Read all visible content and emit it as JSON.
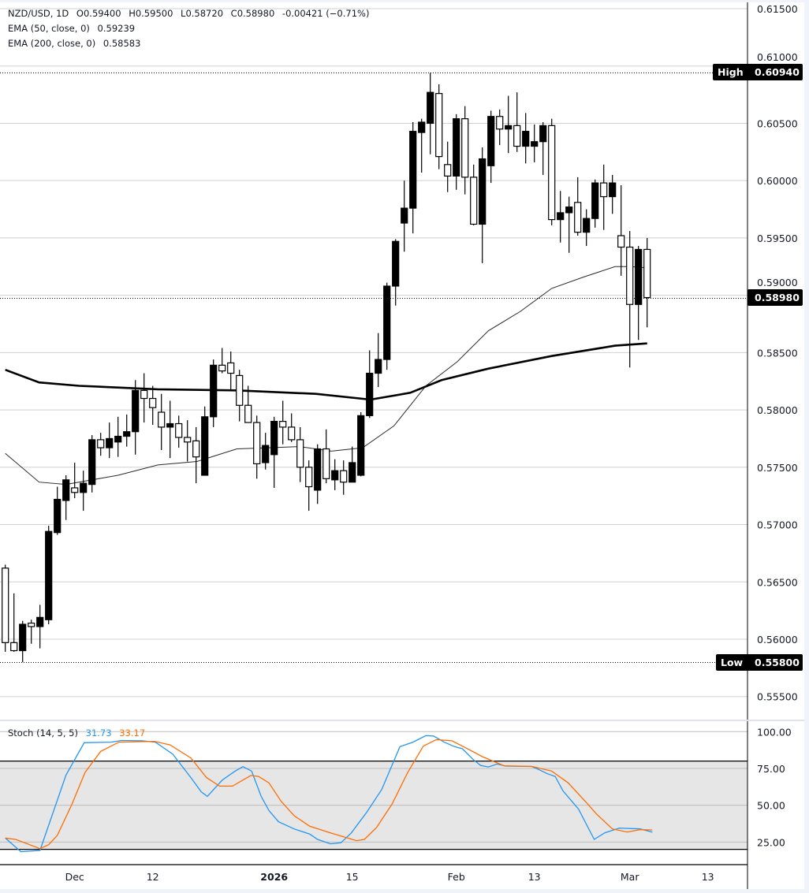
{
  "header": {
    "symbol_line": "NZD/USD, 1D",
    "open": "O0.59400",
    "high": "H0.59500",
    "low": "L0.58720",
    "close": "C0.58980",
    "change": "-0.00421 (−0.71%)",
    "ema50": "EMA (50, close, 0)",
    "ema50_value": "0.59239",
    "ema200": "EMA (200, close, 0)",
    "ema200_value": "0.58583"
  },
  "stoch_legend": {
    "label": "Stoch (14, 5, 5)",
    "k_value": "31.73",
    "d_value": "33.17"
  },
  "colors": {
    "up": "#000000",
    "down": "#ffffff",
    "ema50": "#2a2a2a",
    "ema200": "#000000",
    "stoch_k": "#2196f3",
    "stoch_d": "#ff6d00",
    "band": "#e6e6e6",
    "grid": "#d0d0d0"
  },
  "chart_data": [
    {
      "type": "candlestick",
      "title": "NZD/USD, 1D",
      "ylim": [
        0.553,
        0.616
      ],
      "y_ticks": [
        "0.61500",
        "0.61000",
        "0.60500",
        "0.60000",
        "0.59500",
        "0.59000",
        "0.58500",
        "0.58000",
        "0.57500",
        "0.57000",
        "0.56500",
        "0.56000",
        "0.55500"
      ],
      "x_ticks": [
        {
          "label": "Dec",
          "bar": 8,
          "bold": false
        },
        {
          "label": "12",
          "bar": 17,
          "bold": false
        },
        {
          "label": "2026",
          "bar": 31,
          "bold": true
        },
        {
          "label": "15",
          "bar": 40,
          "bold": false
        },
        {
          "label": "Feb",
          "bar": 52,
          "bold": false
        },
        {
          "label": "13",
          "bar": 61,
          "bold": false
        },
        {
          "label": "Mar",
          "bar": 72,
          "bold": false
        },
        {
          "label": "13",
          "bar": 81,
          "bold": false
        }
      ],
      "markers": {
        "high": {
          "label": "High",
          "value": "0.60940"
        },
        "low": {
          "label": "Low",
          "value": "0.55800"
        },
        "last": {
          "value": "0.58980"
        }
      },
      "ohlc_columns": [
        "open",
        "high",
        "low",
        "close"
      ],
      "candles": [
        [
          0.5662,
          0.5665,
          0.5589,
          0.5597
        ],
        [
          0.5597,
          0.564,
          0.5589,
          0.559
        ],
        [
          0.559,
          0.5616,
          0.558,
          0.5613
        ],
        [
          0.5614,
          0.5617,
          0.5596,
          0.5611
        ],
        [
          0.5611,
          0.563,
          0.5592,
          0.5619
        ],
        [
          0.5617,
          0.5699,
          0.5613,
          0.5694
        ],
        [
          0.5693,
          0.5733,
          0.5691,
          0.5722
        ],
        [
          0.5721,
          0.5743,
          0.5704,
          0.5739
        ],
        [
          0.5732,
          0.5754,
          0.5723,
          0.5728
        ],
        [
          0.5728,
          0.5747,
          0.5712,
          0.5736
        ],
        [
          0.5735,
          0.5778,
          0.5728,
          0.5774
        ],
        [
          0.5774,
          0.578,
          0.576,
          0.5767
        ],
        [
          0.5767,
          0.5789,
          0.5758,
          0.5775
        ],
        [
          0.5772,
          0.5794,
          0.5759,
          0.5777
        ],
        [
          0.5777,
          0.5796,
          0.5768,
          0.5781
        ],
        [
          0.5781,
          0.5826,
          0.5761,
          0.5817
        ],
        [
          0.5817,
          0.5832,
          0.5789,
          0.581
        ],
        [
          0.581,
          0.5821,
          0.5787,
          0.5802
        ],
        [
          0.5798,
          0.5814,
          0.5765,
          0.5785
        ],
        [
          0.5785,
          0.5808,
          0.5758,
          0.5788
        ],
        [
          0.5788,
          0.5795,
          0.5767,
          0.5776
        ],
        [
          0.5776,
          0.5791,
          0.5755,
          0.5772
        ],
        [
          0.5773,
          0.5785,
          0.5736,
          0.5759
        ],
        [
          0.5743,
          0.5803,
          0.5743,
          0.5794
        ],
        [
          0.5794,
          0.5844,
          0.5785,
          0.5839
        ],
        [
          0.5839,
          0.5854,
          0.5832,
          0.5834
        ],
        [
          0.5841,
          0.5851,
          0.5818,
          0.5832
        ],
        [
          0.583,
          0.5835,
          0.579,
          0.5804
        ],
        [
          0.5804,
          0.5821,
          0.5789,
          0.5789
        ],
        [
          0.5789,
          0.5795,
          0.574,
          0.5753
        ],
        [
          0.5754,
          0.578,
          0.5748,
          0.5769
        ],
        [
          0.5761,
          0.5794,
          0.5732,
          0.579
        ],
        [
          0.579,
          0.5808,
          0.577,
          0.5785
        ],
        [
          0.5785,
          0.5797,
          0.5772,
          0.5774
        ],
        [
          0.5774,
          0.5785,
          0.5737,
          0.575
        ],
        [
          0.575,
          0.5756,
          0.5712,
          0.5733
        ],
        [
          0.573,
          0.577,
          0.5718,
          0.5766
        ],
        [
          0.5766,
          0.5783,
          0.5736,
          0.574
        ],
        [
          0.5739,
          0.5757,
          0.573,
          0.5747
        ],
        [
          0.5747,
          0.5756,
          0.5726,
          0.5737
        ],
        [
          0.5737,
          0.5768,
          0.5737,
          0.5754
        ],
        [
          0.5743,
          0.5798,
          0.5742,
          0.5795
        ],
        [
          0.5795,
          0.5852,
          0.5793,
          0.5832
        ],
        [
          0.5832,
          0.5867,
          0.582,
          0.5844
        ],
        [
          0.5844,
          0.5911,
          0.5835,
          0.5908
        ],
        [
          0.5908,
          0.5949,
          0.5891,
          0.5947
        ],
        [
          0.5963,
          0.6,
          0.5938,
          0.5976
        ],
        [
          0.5976,
          0.6051,
          0.5954,
          0.6043
        ],
        [
          0.6042,
          0.6054,
          0.6007,
          0.6051
        ],
        [
          0.605,
          0.6094,
          0.6023,
          0.6077
        ],
        [
          0.6076,
          0.6084,
          0.601,
          0.6021
        ],
        [
          0.6014,
          0.6034,
          0.599,
          0.6004
        ],
        [
          0.6004,
          0.6058,
          0.5992,
          0.6054
        ],
        [
          0.6054,
          0.6065,
          0.5988,
          0.6003
        ],
        [
          0.6003,
          0.6014,
          0.5961,
          0.5962
        ],
        [
          0.5962,
          0.6029,
          0.5928,
          0.6019
        ],
        [
          0.6013,
          0.6061,
          0.5998,
          0.6056
        ],
        [
          0.6056,
          0.6062,
          0.6031,
          0.6045
        ],
        [
          0.6045,
          0.6074,
          0.6024,
          0.6048
        ],
        [
          0.6048,
          0.6077,
          0.6025,
          0.603
        ],
        [
          0.603,
          0.6059,
          0.6015,
          0.6043
        ],
        [
          0.603,
          0.6049,
          0.6016,
          0.6034
        ],
        [
          0.6034,
          0.6051,
          0.6005,
          0.6048
        ],
        [
          0.6048,
          0.6054,
          0.5961,
          0.5966
        ],
        [
          0.5966,
          0.5991,
          0.5946,
          0.5972
        ],
        [
          0.5972,
          0.5986,
          0.5937,
          0.5977
        ],
        [
          0.5981,
          0.6003,
          0.5952,
          0.5955
        ],
        [
          0.5955,
          0.5975,
          0.5943,
          0.5967
        ],
        [
          0.5967,
          0.6001,
          0.5959,
          0.5998
        ],
        [
          0.5998,
          0.6014,
          0.5957,
          0.5986
        ],
        [
          0.5986,
          0.6005,
          0.5971,
          0.5998
        ],
        [
          0.5952,
          0.5996,
          0.5917,
          0.5942
        ],
        [
          0.5942,
          0.5956,
          0.5837,
          0.5892
        ],
        [
          0.5892,
          0.5943,
          0.5861,
          0.594
        ],
        [
          0.594,
          0.595,
          0.5872,
          0.5898
        ]
      ],
      "ema50": [
        [
          0,
          0.5762
        ],
        [
          3.9,
          0.5737
        ],
        [
          7,
          0.5735
        ],
        [
          13,
          0.5743
        ],
        [
          17.6,
          0.5752
        ],
        [
          22.1,
          0.5755
        ],
        [
          26.7,
          0.5766
        ],
        [
          30.3,
          0.5767
        ],
        [
          33.9,
          0.5768
        ],
        [
          37.6,
          0.5764
        ],
        [
          41.2,
          0.5767
        ],
        [
          44.8,
          0.5786
        ],
        [
          48.5,
          0.5821
        ],
        [
          52.1,
          0.5842
        ],
        [
          55.7,
          0.5869
        ],
        [
          59.4,
          0.5886
        ],
        [
          63,
          0.5906
        ],
        [
          66.7,
          0.5916
        ],
        [
          70.3,
          0.5925
        ],
        [
          72.1,
          0.5925
        ],
        [
          74,
          0.5924
        ]
      ],
      "ema200": [
        [
          0,
          0.5835
        ],
        [
          3.9,
          0.5824
        ],
        [
          8.5,
          0.5821
        ],
        [
          17.6,
          0.5818
        ],
        [
          26.7,
          0.5817
        ],
        [
          35.8,
          0.5814
        ],
        [
          42.1,
          0.5809
        ],
        [
          46.7,
          0.5815
        ],
        [
          50.3,
          0.5826
        ],
        [
          55.7,
          0.5836
        ],
        [
          63,
          0.5847
        ],
        [
          70.3,
          0.5856
        ],
        [
          74,
          0.5858
        ]
      ]
    },
    {
      "type": "line",
      "title": "Stoch (14, 5, 5)",
      "ylim": [
        0,
        100
      ],
      "y_ticks": [
        "100.00",
        "75.00",
        "50.00",
        "25.00"
      ],
      "bands": {
        "upper": 80,
        "lower": 20
      },
      "series": [
        {
          "name": "31.73",
          "key": "k",
          "points": [
            [
              0,
              27.7
            ],
            [
              1.8,
              18.4
            ],
            [
              4,
              19.3
            ],
            [
              7,
              70.5
            ],
            [
              9.1,
              92.5
            ],
            [
              12.2,
              92.9
            ],
            [
              13.4,
              94
            ],
            [
              15.8,
              93.8
            ],
            [
              17.3,
              92.9
            ],
            [
              19.3,
              84.8
            ],
            [
              21.4,
              68.8
            ],
            [
              22.6,
              59
            ],
            [
              23.3,
              56
            ],
            [
              25,
              67
            ],
            [
              26.5,
              73.2
            ],
            [
              27.4,
              76.2
            ],
            [
              28.4,
              73.2
            ],
            [
              29.5,
              56
            ],
            [
              30.4,
              46.4
            ],
            [
              31.5,
              38.8
            ],
            [
              33.3,
              33.9
            ],
            [
              35.1,
              30.4
            ],
            [
              36,
              26.8
            ],
            [
              37.5,
              23.8
            ],
            [
              38.7,
              24.5
            ],
            [
              39.9,
              31.2
            ],
            [
              41.7,
              45.5
            ],
            [
              43.4,
              60.7
            ],
            [
              45.5,
              89.8
            ],
            [
              47,
              92.9
            ],
            [
              48.5,
              97.3
            ],
            [
              49.4,
              97
            ],
            [
              50.6,
              92.9
            ],
            [
              51.8,
              89.8
            ],
            [
              52.7,
              88.4
            ],
            [
              53.9,
              81.3
            ],
            [
              54.8,
              77.1
            ],
            [
              55.7,
              76
            ],
            [
              56.7,
              78
            ],
            [
              57.7,
              76.6
            ],
            [
              60.7,
              76.3
            ],
            [
              61.6,
              74
            ],
            [
              62.5,
              71.4
            ],
            [
              63.4,
              69.6
            ],
            [
              64.3,
              59.8
            ],
            [
              66.1,
              47.3
            ],
            [
              67.9,
              26.8
            ],
            [
              69.1,
              31.2
            ],
            [
              70.8,
              34.5
            ],
            [
              73.2,
              33.9
            ],
            [
              74.6,
              31.7
            ]
          ]
        },
        {
          "name": "33.17",
          "key": "d",
          "points": [
            [
              0,
              27.7
            ],
            [
              1.2,
              26.8
            ],
            [
              4,
              20.5
            ],
            [
              5,
              23.2
            ],
            [
              6,
              29.5
            ],
            [
              7.7,
              50.9
            ],
            [
              9.2,
              72.3
            ],
            [
              11,
              86.6
            ],
            [
              13.1,
              92.9
            ],
            [
              17.2,
              93.4
            ],
            [
              19,
              91
            ],
            [
              21.4,
              82.1
            ],
            [
              23.2,
              68.8
            ],
            [
              24.7,
              63
            ],
            [
              26.2,
              63
            ],
            [
              28.3,
              70.2
            ],
            [
              29.2,
              69.6
            ],
            [
              30.4,
              65.2
            ],
            [
              31.8,
              52.7
            ],
            [
              33.3,
              42.9
            ],
            [
              35.1,
              35.7
            ],
            [
              37.5,
              31.2
            ],
            [
              40.5,
              25.9
            ],
            [
              41.4,
              26.8
            ],
            [
              42.8,
              34.8
            ],
            [
              44.6,
              50.9
            ],
            [
              46.4,
              72.3
            ],
            [
              48.2,
              90.2
            ],
            [
              49.7,
              94.6
            ],
            [
              51.5,
              93.8
            ],
            [
              53,
              89.3
            ],
            [
              55,
              83
            ],
            [
              57.5,
              76.8
            ],
            [
              60.7,
              76.4
            ],
            [
              63,
              73.2
            ],
            [
              64.9,
              65.2
            ],
            [
              67,
              51.8
            ],
            [
              68.2,
              43.8
            ],
            [
              70,
              33.9
            ],
            [
              71.7,
              31.8
            ],
            [
              73.2,
              33.4
            ],
            [
              74.6,
              33.2
            ]
          ]
        }
      ]
    }
  ]
}
